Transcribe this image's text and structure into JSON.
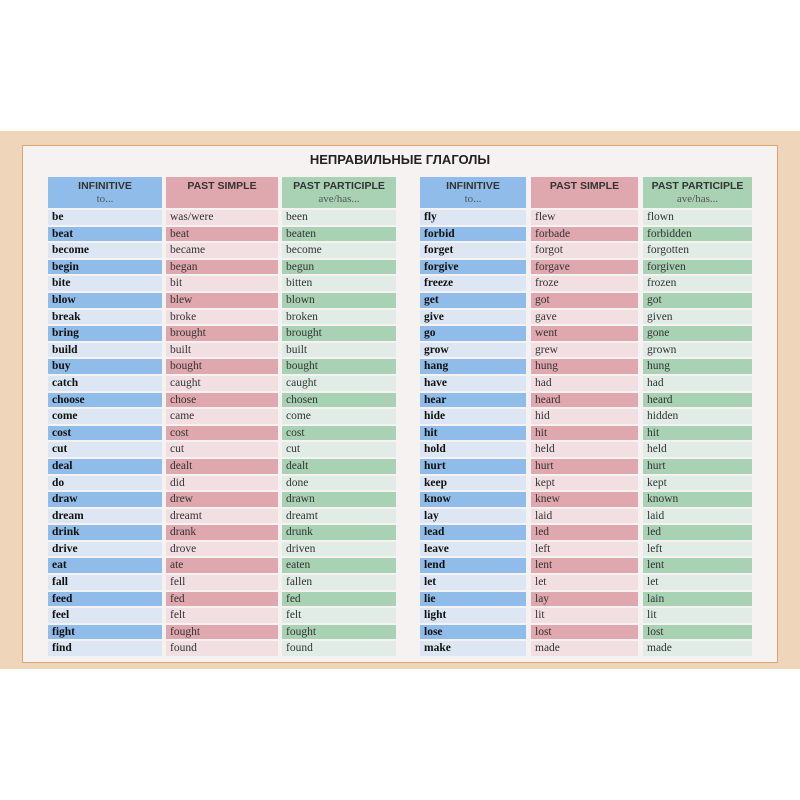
{
  "title": "НЕПРАВИЛЬНЫЕ ГЛАГОЛЫ",
  "headers": {
    "infinitive": "INFINITIVE",
    "infinitive_sub": "to...",
    "past_simple": "PAST SIMPLE",
    "past_participle": "PAST PARTICIPLE",
    "past_participle_sub": "ave/has..."
  },
  "colors": {
    "infinitive": "#8fbce8",
    "past_simple": "#dfa7ae",
    "past_participle": "#a9d1b4",
    "frame": "#efd6bb"
  },
  "tables": [
    {
      "infinitive": [
        "be",
        "beat",
        "become",
        "begin",
        "bite",
        "blow",
        "break",
        "bring",
        "build",
        "buy",
        "catch",
        "choose",
        "come",
        "cost",
        "cut",
        "deal",
        "do",
        "draw",
        "dream",
        "drink",
        "drive",
        "eat",
        "fall",
        "feed",
        "feel",
        "fight",
        "find"
      ],
      "past_simple": [
        "was/were",
        "beat",
        "became",
        "began",
        "bit",
        "blew",
        "broke",
        "brought",
        "built",
        "bought",
        "caught",
        "chose",
        "came",
        "cost",
        "cut",
        "dealt",
        "did",
        "drew",
        "dreamt",
        "drank",
        "drove",
        "ate",
        "fell",
        "fed",
        "felt",
        "fought",
        "found"
      ],
      "past_participle": [
        "been",
        "beaten",
        "become",
        "begun",
        "bitten",
        "blown",
        "broken",
        "brought",
        "built",
        "bought",
        "caught",
        "chosen",
        "come",
        "cost",
        "cut",
        "dealt",
        "done",
        "drawn",
        "dreamt",
        "drunk",
        "driven",
        "eaten",
        "fallen",
        "fed",
        "felt",
        "fought",
        "found"
      ]
    },
    {
      "infinitive": [
        "fly",
        "forbid",
        "forget",
        "forgive",
        "freeze",
        "get",
        "give",
        "go",
        "grow",
        "hang",
        "have",
        "hear",
        "hide",
        "hit",
        "hold",
        "hurt",
        "keep",
        "know",
        "lay",
        "lead",
        "leave",
        "lend",
        "let",
        "lie",
        "light",
        "lose",
        "make"
      ],
      "past_simple": [
        "flew",
        "forbade",
        "forgot",
        "forgave",
        "froze",
        "got",
        "gave",
        "went",
        "grew",
        "hung",
        "had",
        "heard",
        "hid",
        "hit",
        "held",
        "hurt",
        "kept",
        "knew",
        "laid",
        "led",
        "left",
        "lent",
        "let",
        "lay",
        "lit",
        "lost",
        "made"
      ],
      "past_participle": [
        "flown",
        "forbidden",
        "forgotten",
        "forgiven",
        "frozen",
        "got",
        "given",
        "gone",
        "grown",
        "hung",
        "had",
        "heard",
        "hidden",
        "hit",
        "held",
        "hurt",
        "kept",
        "known",
        "laid",
        "led",
        "left",
        "lent",
        "let",
        "lain",
        "lit",
        "lost",
        "made"
      ]
    }
  ]
}
